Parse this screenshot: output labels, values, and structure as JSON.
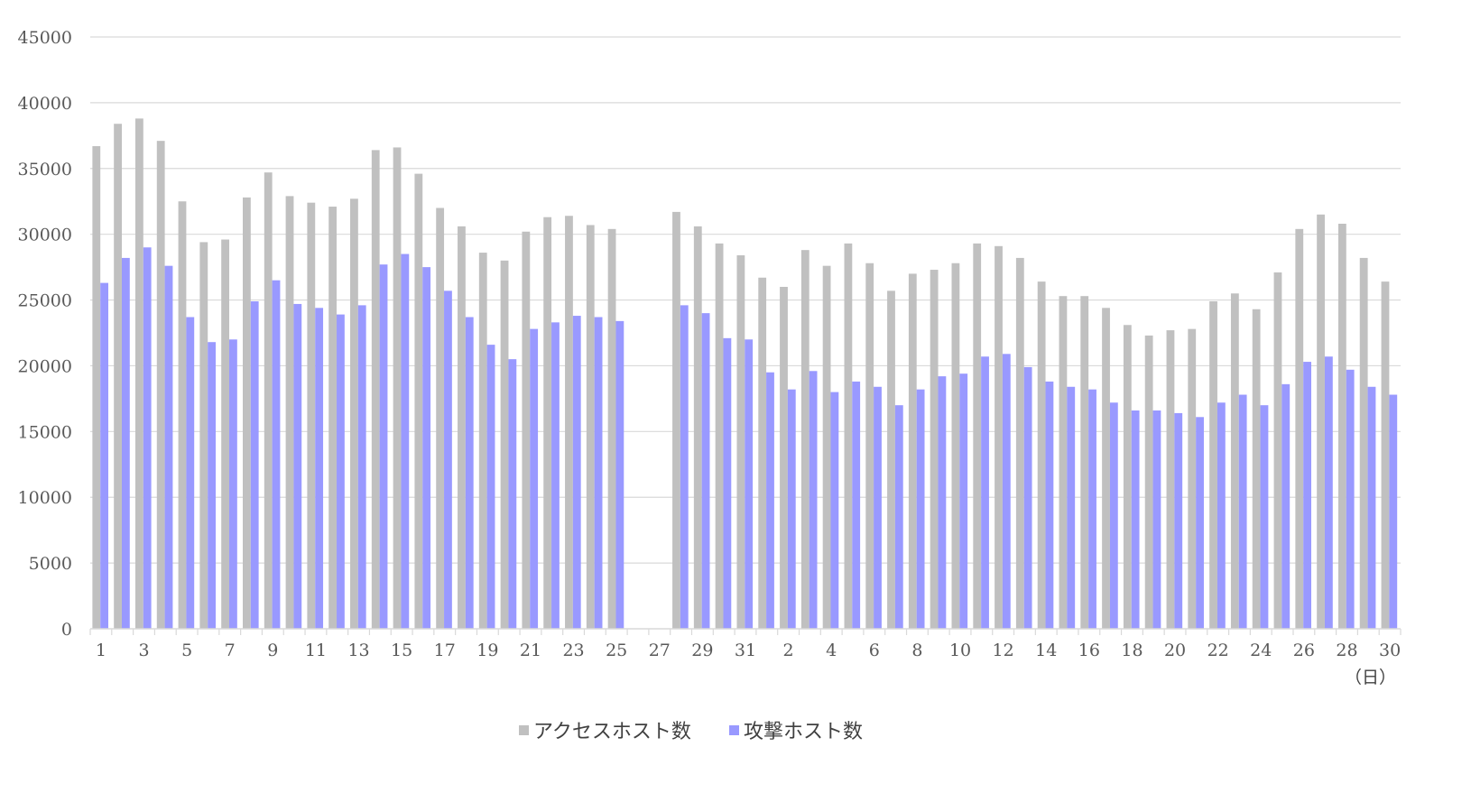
{
  "chart_data": {
    "type": "bar",
    "x_unit_label": "（日）",
    "ylim": [
      0,
      45000
    ],
    "y_ticks": [
      0,
      5000,
      10000,
      15000,
      20000,
      25000,
      30000,
      35000,
      40000,
      45000
    ],
    "grid": "horizontal",
    "legend_position": "bottom",
    "categories": [
      "1",
      "2",
      "3",
      "4",
      "5",
      "6",
      "7",
      "8",
      "9",
      "10",
      "11",
      "12",
      "13",
      "14",
      "15",
      "16",
      "17",
      "18",
      "19",
      "20",
      "21",
      "22",
      "23",
      "24",
      "25",
      "26",
      "27",
      "28",
      "29",
      "30",
      "31",
      "1",
      "2",
      "3",
      "4",
      "5",
      "6",
      "7",
      "8",
      "9",
      "10",
      "11",
      "12",
      "13",
      "14",
      "15",
      "16",
      "17",
      "18",
      "19",
      "20",
      "21",
      "22",
      "23",
      "24",
      "25",
      "26",
      "27",
      "28",
      "29",
      "30"
    ],
    "x_tick_labels": [
      "1",
      "3",
      "5",
      "7",
      "9",
      "11",
      "13",
      "15",
      "17",
      "19",
      "21",
      "23",
      "25",
      "27",
      "29",
      "31",
      "2",
      "4",
      "6",
      "8",
      "10",
      "12",
      "14",
      "16",
      "18",
      "20",
      "22",
      "24",
      "26",
      "28",
      "30"
    ],
    "series": [
      {
        "name": "アクセスホスト数",
        "color": "#c0c0c0",
        "values": [
          36700,
          38400,
          38800,
          37100,
          32500,
          29400,
          29600,
          32800,
          34700,
          32900,
          32400,
          32100,
          32700,
          36400,
          36600,
          34600,
          32000,
          30600,
          28600,
          28000,
          30200,
          31300,
          31400,
          30700,
          30400,
          null,
          null,
          31700,
          30600,
          29300,
          28400,
          26700,
          26000,
          28800,
          27600,
          29300,
          27800,
          25700,
          27000,
          27300,
          27800,
          29300,
          29100,
          28200,
          26400,
          25300,
          25300,
          24400,
          23100,
          22300,
          22700,
          22800,
          24900,
          25500,
          24300,
          27100,
          30400,
          31500,
          30800,
          28200,
          26400
        ]
      },
      {
        "name": "攻撃ホスト数",
        "color": "#9999ff",
        "values": [
          26300,
          28200,
          29000,
          27600,
          23700,
          21800,
          22000,
          24900,
          26500,
          24700,
          24400,
          23900,
          24600,
          27700,
          28500,
          27500,
          25700,
          23700,
          21600,
          20500,
          22800,
          23300,
          23800,
          23700,
          23400,
          null,
          null,
          24600,
          24000,
          22100,
          22000,
          19500,
          18200,
          19600,
          18000,
          18800,
          18400,
          17000,
          18200,
          19200,
          19400,
          20700,
          20900,
          19900,
          18800,
          18400,
          18200,
          17200,
          16600,
          16600,
          16400,
          16100,
          17200,
          17800,
          17000,
          18600,
          20300,
          20700,
          19700,
          18400,
          17800
        ]
      }
    ]
  }
}
